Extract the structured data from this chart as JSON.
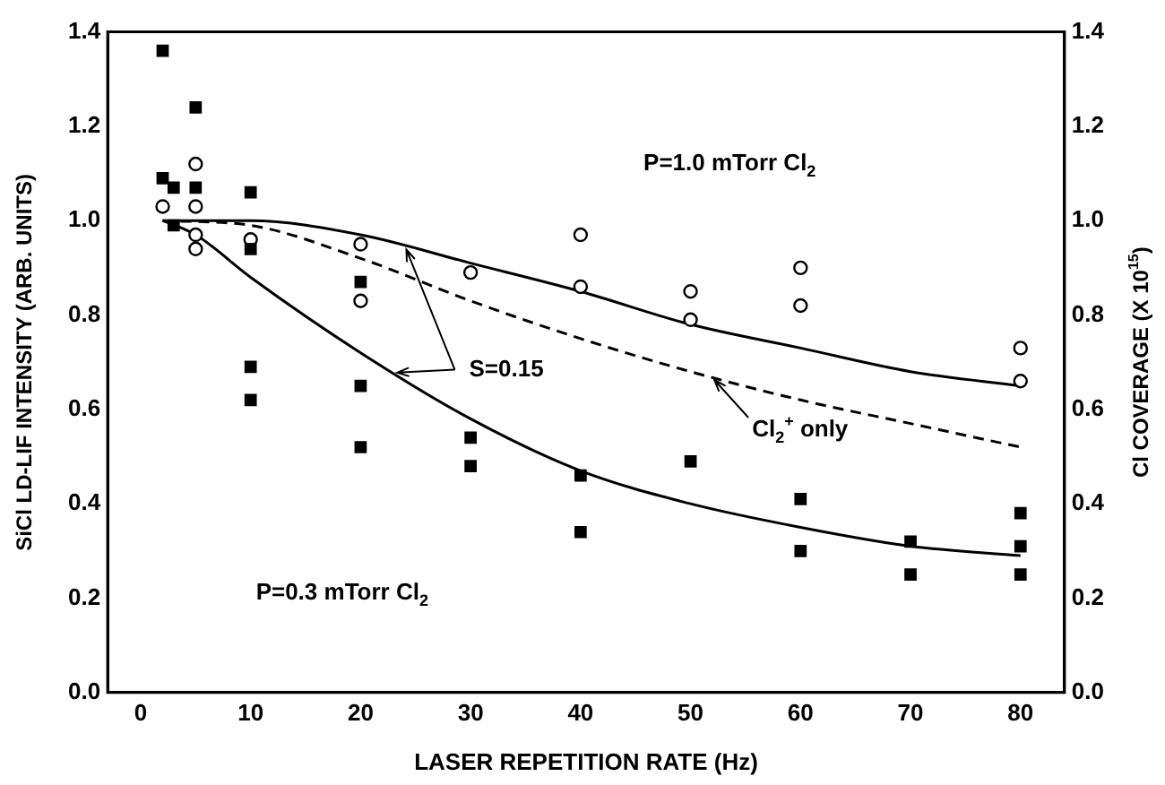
{
  "chart_data": {
    "type": "scatter",
    "xlabel": "LASER REPETITION RATE (Hz)",
    "ylabel": "SiCl LD-LIF INTENSITY (ARB. UNITS)",
    "y2label": "Cl COVERAGE (X 10$^{15}$)",
    "xlim": [
      -3,
      84
    ],
    "xticks": [
      0,
      10,
      20,
      30,
      40,
      50,
      60,
      70,
      80
    ],
    "ylim": [
      0,
      1.4
    ],
    "yticks": [
      {
        "value": 0,
        "label": "0.0"
      },
      0.2,
      0.4,
      0.6,
      0.8,
      {
        "value": 1,
        "label": "1.0"
      },
      1.2,
      1.4
    ],
    "y2lim": [
      0,
      1.4
    ],
    "y2ticks": [
      {
        "value": 0,
        "label": "0.0"
      },
      0.2,
      0.4,
      0.6,
      0.8,
      {
        "value": 1,
        "label": "1.0"
      },
      1.2,
      1.4
    ],
    "grid": false,
    "legend": false,
    "series": [
      {
        "marker": "square",
        "color": "#000000",
        "x": [
          2,
          2,
          3,
          3,
          5,
          5,
          10,
          10,
          10,
          10,
          20,
          20,
          20,
          30,
          30,
          40,
          40,
          50,
          60,
          60,
          70,
          70,
          80,
          80,
          80
        ],
        "values": [
          1.36,
          1.09,
          1.07,
          0.99,
          1.24,
          1.07,
          1.06,
          0.94,
          0.69,
          0.62,
          0.87,
          0.65,
          0.52,
          0.54,
          0.48,
          0.46,
          0.34,
          0.49,
          0.41,
          0.3,
          0.32,
          0.25,
          0.38,
          0.31,
          0.25
        ]
      },
      {
        "marker": "circle",
        "color": "#000000",
        "x": [
          2,
          5,
          5,
          5,
          5,
          10,
          20,
          20,
          30,
          40,
          40,
          50,
          50,
          60,
          60,
          80,
          80
        ],
        "values": [
          1.03,
          1.12,
          1.03,
          0.97,
          0.94,
          0.96,
          0.95,
          0.83,
          0.89,
          0.97,
          0.86,
          0.85,
          0.79,
          0.9,
          0.82,
          0.73,
          0.66
        ]
      },
      {
        "type": "line",
        "line_style": "solid",
        "color": "#000000",
        "x": [
          2,
          10,
          20,
          30,
          40,
          50,
          60,
          70,
          80
        ],
        "values": [
          1.0,
          1.0,
          0.97,
          0.91,
          0.85,
          0.78,
          0.73,
          0.68,
          0.65
        ]
      },
      {
        "type": "line",
        "line_style": "dashed",
        "color": "#000000",
        "x": [
          2,
          10,
          20,
          30,
          40,
          50,
          60,
          70,
          80
        ],
        "values": [
          1.0,
          0.99,
          0.92,
          0.83,
          0.75,
          0.68,
          0.62,
          0.57,
          0.52
        ]
      },
      {
        "type": "line",
        "line_style": "solid",
        "color": "#000000",
        "x": [
          2,
          5,
          10,
          20,
          30,
          40,
          50,
          60,
          70,
          80
        ],
        "values": [
          1.0,
          0.97,
          0.88,
          0.72,
          0.58,
          0.47,
          0.4,
          0.35,
          0.31,
          0.29
        ]
      }
    ],
    "annotations": [
      "P=1.0 mTorr Cl$_{2}$",
      "P=0.3 mTorr Cl$_{2}$",
      {
        "text": "S=0.15",
        "x": 24,
        "y": 0.95
      },
      {
        "text": "Cl$_{2}$$^{+}$ only",
        "x": 52,
        "y": 0.67
      }
    ]
  }
}
